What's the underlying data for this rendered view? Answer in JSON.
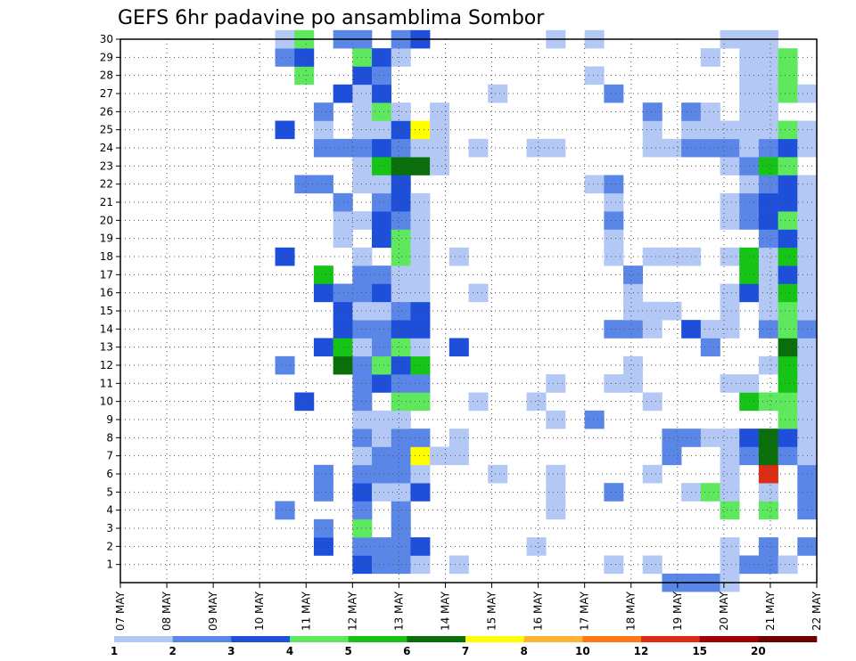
{
  "chart_data": {
    "type": "heatmap",
    "title": "GEFS 6hr padavine po ansamblima Sombor",
    "x_start": "2018-05-07",
    "x_labels": [
      "07 MAY",
      "08 MAY",
      "09 MAY",
      "10 MAY",
      "11 MAY",
      "12 MAY",
      "13 MAY",
      "14 MAY",
      "15 MAY",
      "16 MAY",
      "17 MAY",
      "18 MAY",
      "19 MAY",
      "20 MAY",
      "21 MAY",
      "22 MAY"
    ],
    "y_ticks": [
      1,
      2,
      3,
      4,
      5,
      6,
      7,
      8,
      9,
      10,
      11,
      12,
      13,
      14,
      15,
      16,
      17,
      18,
      19,
      20,
      21,
      22,
      23,
      24,
      25,
      26,
      27,
      28,
      29,
      30
    ],
    "grid": true,
    "legend": {
      "placement": "bottom",
      "labels": [
        "1",
        "2",
        "3",
        "4",
        "5",
        "6",
        "7",
        "8",
        "10",
        "12",
        "15",
        "20"
      ],
      "colors": [
        "#b4c8f5",
        "#5a86e8",
        "#1e4fdb",
        "#5ee85e",
        "#16c416",
        "#0a6e0a",
        "#ffff00",
        "#ffb432",
        "#ff7814",
        "#dc2c14",
        "#a00000",
        "#6e0000"
      ]
    },
    "cells": [
      [
        8,
        4,
        3
      ],
      [
        8,
        4,
        2
      ],
      [
        8,
        12,
        2
      ],
      [
        8,
        18,
        3
      ],
      [
        8,
        25,
        3
      ],
      [
        8,
        29,
        2
      ],
      [
        8,
        30,
        1
      ],
      [
        9,
        10,
        3
      ],
      [
        9,
        22,
        2
      ],
      [
        9,
        28,
        4
      ],
      [
        9,
        29,
        3
      ],
      [
        9,
        30,
        4
      ],
      [
        10,
        2,
        3
      ],
      [
        10,
        3,
        2
      ],
      [
        10,
        5,
        2
      ],
      [
        10,
        6,
        2
      ],
      [
        10,
        13,
        3
      ],
      [
        10,
        16,
        3
      ],
      [
        10,
        17,
        5
      ],
      [
        10,
        22,
        2
      ],
      [
        10,
        24,
        2
      ],
      [
        10,
        25,
        1
      ],
      [
        10,
        26,
        2
      ],
      [
        11,
        12,
        6
      ],
      [
        11,
        13,
        5
      ],
      [
        11,
        14,
        3
      ],
      [
        11,
        15,
        3
      ],
      [
        11,
        16,
        2
      ],
      [
        11,
        19,
        1
      ],
      [
        11,
        20,
        1
      ],
      [
        11,
        21,
        2
      ],
      [
        11,
        24,
        2
      ],
      [
        11,
        27,
        3
      ],
      [
        11,
        30,
        2
      ],
      [
        12,
        1,
        3
      ],
      [
        12,
        2,
        2
      ],
      [
        12,
        3,
        4
      ],
      [
        12,
        4,
        2
      ],
      [
        12,
        5,
        3
      ],
      [
        12,
        6,
        2
      ],
      [
        12,
        7,
        1
      ],
      [
        12,
        8,
        2
      ],
      [
        12,
        9,
        1
      ],
      [
        12,
        10,
        2
      ],
      [
        12,
        11,
        2
      ],
      [
        12,
        12,
        2
      ],
      [
        12,
        13,
        1
      ],
      [
        12,
        14,
        2
      ],
      [
        12,
        15,
        1
      ],
      [
        12,
        16,
        2
      ],
      [
        12,
        17,
        2
      ],
      [
        12,
        18,
        1
      ],
      [
        12,
        20,
        1
      ],
      [
        12,
        22,
        1
      ],
      [
        12,
        23,
        1
      ],
      [
        12,
        24,
        2
      ],
      [
        12,
        25,
        1
      ],
      [
        12,
        26,
        1
      ],
      [
        12,
        27,
        1
      ],
      [
        12,
        28,
        3
      ],
      [
        12,
        29,
        4
      ],
      [
        12,
        30,
        2
      ],
      [
        13,
        1,
        2
      ],
      [
        13,
        2,
        2
      ],
      [
        13,
        5,
        1
      ],
      [
        13,
        6,
        2
      ],
      [
        13,
        7,
        2
      ],
      [
        13,
        8,
        1
      ],
      [
        13,
        9,
        1
      ],
      [
        13,
        11,
        3
      ],
      [
        13,
        12,
        4
      ],
      [
        13,
        13,
        2
      ],
      [
        13,
        14,
        2
      ],
      [
        13,
        15,
        1
      ],
      [
        13,
        16,
        3
      ],
      [
        13,
        17,
        2
      ],
      [
        13,
        19,
        3
      ],
      [
        13,
        20,
        3
      ],
      [
        13,
        21,
        2
      ],
      [
        13,
        22,
        1
      ],
      [
        13,
        23,
        5
      ],
      [
        13,
        24,
        3
      ],
      [
        13,
        25,
        1
      ],
      [
        13,
        26,
        4
      ],
      [
        13,
        27,
        3
      ],
      [
        13,
        28,
        2
      ],
      [
        13,
        29,
        3
      ],
      [
        14,
        1,
        2
      ],
      [
        14,
        2,
        2
      ],
      [
        14,
        3,
        2
      ],
      [
        14,
        4,
        2
      ],
      [
        14,
        5,
        1
      ],
      [
        14,
        6,
        2
      ],
      [
        14,
        7,
        2
      ],
      [
        14,
        8,
        2
      ],
      [
        14,
        9,
        1
      ],
      [
        14,
        10,
        4
      ],
      [
        14,
        11,
        2
      ],
      [
        14,
        12,
        3
      ],
      [
        14,
        13,
        4
      ],
      [
        14,
        14,
        3
      ],
      [
        14,
        15,
        2
      ],
      [
        14,
        16,
        1
      ],
      [
        14,
        17,
        1
      ],
      [
        14,
        18,
        4
      ],
      [
        14,
        19,
        4
      ],
      [
        14,
        20,
        2
      ],
      [
        14,
        21,
        3
      ],
      [
        14,
        22,
        3
      ],
      [
        14,
        23,
        6
      ],
      [
        14,
        24,
        2
      ],
      [
        14,
        25,
        3
      ],
      [
        14,
        26,
        1
      ],
      [
        14,
        29,
        1
      ],
      [
        14,
        30,
        2
      ],
      [
        15,
        1,
        1
      ],
      [
        15,
        2,
        3
      ],
      [
        15,
        5,
        3
      ],
      [
        15,
        6,
        1
      ],
      [
        15,
        7,
        7
      ],
      [
        15,
        8,
        2
      ],
      [
        15,
        10,
        4
      ],
      [
        15,
        11,
        2
      ],
      [
        15,
        12,
        5
      ],
      [
        15,
        13,
        1
      ],
      [
        15,
        14,
        3
      ],
      [
        15,
        15,
        3
      ],
      [
        15,
        16,
        1
      ],
      [
        15,
        17,
        1
      ],
      [
        15,
        18,
        1
      ],
      [
        15,
        19,
        1
      ],
      [
        15,
        20,
        1
      ],
      [
        15,
        21,
        1
      ],
      [
        15,
        23,
        6
      ],
      [
        15,
        24,
        1
      ],
      [
        15,
        25,
        7
      ],
      [
        15,
        30,
        3
      ],
      [
        16,
        7,
        1
      ],
      [
        16,
        23,
        1
      ],
      [
        16,
        24,
        1
      ],
      [
        16,
        25,
        1
      ],
      [
        16,
        26,
        1
      ],
      [
        17,
        1,
        1
      ],
      [
        17,
        7,
        1
      ],
      [
        17,
        8,
        1
      ],
      [
        17,
        13,
        3
      ],
      [
        17,
        18,
        1
      ],
      [
        18,
        10,
        1
      ],
      [
        18,
        16,
        1
      ],
      [
        18,
        24,
        1
      ],
      [
        19,
        6,
        1
      ],
      [
        19,
        27,
        1
      ],
      [
        21,
        2,
        1
      ],
      [
        21,
        10,
        1
      ],
      [
        21,
        24,
        1
      ],
      [
        22,
        4,
        1
      ],
      [
        22,
        5,
        1
      ],
      [
        22,
        6,
        1
      ],
      [
        22,
        9,
        1
      ],
      [
        22,
        11,
        1
      ],
      [
        22,
        24,
        1
      ],
      [
        22,
        30,
        1
      ],
      [
        24,
        9,
        2
      ],
      [
        24,
        22,
        1
      ],
      [
        24,
        28,
        1
      ],
      [
        24,
        30,
        1
      ],
      [
        25,
        1,
        1
      ],
      [
        25,
        5,
        2
      ],
      [
        25,
        11,
        1
      ],
      [
        25,
        14,
        2
      ],
      [
        25,
        18,
        1
      ],
      [
        25,
        19,
        1
      ],
      [
        25,
        20,
        2
      ],
      [
        25,
        21,
        1
      ],
      [
        25,
        22,
        2
      ],
      [
        25,
        27,
        2
      ],
      [
        26,
        11,
        1
      ],
      [
        26,
        12,
        1
      ],
      [
        26,
        14,
        2
      ],
      [
        26,
        15,
        1
      ],
      [
        26,
        16,
        1
      ],
      [
        26,
        17,
        2
      ],
      [
        27,
        1,
        1
      ],
      [
        27,
        6,
        1
      ],
      [
        27,
        10,
        1
      ],
      [
        27,
        14,
        1
      ],
      [
        27,
        15,
        1
      ],
      [
        27,
        18,
        1
      ],
      [
        27,
        24,
        1
      ],
      [
        27,
        25,
        1
      ],
      [
        27,
        26,
        2
      ],
      [
        28,
        0,
        2
      ],
      [
        28,
        7,
        2
      ],
      [
        28,
        8,
        2
      ],
      [
        28,
        15,
        1
      ],
      [
        28,
        18,
        1
      ],
      [
        28,
        24,
        1
      ],
      [
        29,
        0,
        2
      ],
      [
        29,
        5,
        1
      ],
      [
        29,
        8,
        2
      ],
      [
        29,
        14,
        3
      ],
      [
        29,
        18,
        1
      ],
      [
        29,
        24,
        2
      ],
      [
        29,
        25,
        1
      ],
      [
        29,
        26,
        2
      ],
      [
        30,
        0,
        2
      ],
      [
        30,
        5,
        4
      ],
      [
        30,
        8,
        1
      ],
      [
        30,
        13,
        2
      ],
      [
        30,
        14,
        1
      ],
      [
        30,
        24,
        2
      ],
      [
        30,
        25,
        1
      ],
      [
        30,
        26,
        1
      ],
      [
        30,
        29,
        1
      ],
      [
        31,
        0,
        1
      ],
      [
        31,
        1,
        1
      ],
      [
        31,
        2,
        1
      ],
      [
        31,
        4,
        4
      ],
      [
        31,
        5,
        1
      ],
      [
        31,
        6,
        1
      ],
      [
        31,
        7,
        1
      ],
      [
        31,
        8,
        1
      ],
      [
        31,
        11,
        1
      ],
      [
        31,
        14,
        1
      ],
      [
        31,
        15,
        1
      ],
      [
        31,
        16,
        1
      ],
      [
        31,
        18,
        1
      ],
      [
        31,
        20,
        1
      ],
      [
        31,
        21,
        1
      ],
      [
        31,
        23,
        1
      ],
      [
        31,
        24,
        2
      ],
      [
        31,
        25,
        1
      ],
      [
        31,
        30,
        1
      ],
      [
        32,
        1,
        2
      ],
      [
        32,
        7,
        2
      ],
      [
        32,
        8,
        3
      ],
      [
        32,
        10,
        5
      ],
      [
        32,
        11,
        1
      ],
      [
        32,
        16,
        3
      ],
      [
        32,
        17,
        5
      ],
      [
        32,
        18,
        5
      ],
      [
        32,
        20,
        2
      ],
      [
        32,
        21,
        2
      ],
      [
        32,
        22,
        1
      ],
      [
        32,
        23,
        2
      ],
      [
        32,
        24,
        1
      ],
      [
        32,
        25,
        1
      ],
      [
        32,
        26,
        1
      ],
      [
        32,
        27,
        1
      ],
      [
        32,
        28,
        1
      ],
      [
        32,
        29,
        1
      ],
      [
        32,
        30,
        1
      ],
      [
        33,
        1,
        2
      ],
      [
        33,
        2,
        2
      ],
      [
        33,
        4,
        4
      ],
      [
        33,
        5,
        1
      ],
      [
        33,
        6,
        10
      ],
      [
        33,
        7,
        6
      ],
      [
        33,
        8,
        6
      ],
      [
        33,
        10,
        4
      ],
      [
        33,
        12,
        1
      ],
      [
        33,
        14,
        2
      ],
      [
        33,
        15,
        1
      ],
      [
        33,
        16,
        1
      ],
      [
        33,
        17,
        1
      ],
      [
        33,
        18,
        1
      ],
      [
        33,
        19,
        2
      ],
      [
        33,
        20,
        3
      ],
      [
        33,
        21,
        3
      ],
      [
        33,
        22,
        2
      ],
      [
        33,
        23,
        5
      ],
      [
        33,
        24,
        2
      ],
      [
        33,
        25,
        1
      ],
      [
        33,
        26,
        1
      ],
      [
        33,
        27,
        1
      ],
      [
        33,
        28,
        1
      ],
      [
        33,
        29,
        1
      ],
      [
        33,
        30,
        1
      ],
      [
        34,
        1,
        1
      ],
      [
        34,
        7,
        2
      ],
      [
        34,
        8,
        3
      ],
      [
        34,
        9,
        4
      ],
      [
        34,
        10,
        4
      ],
      [
        34,
        11,
        5
      ],
      [
        34,
        12,
        5
      ],
      [
        34,
        13,
        6
      ],
      [
        34,
        14,
        4
      ],
      [
        34,
        15,
        4
      ],
      [
        34,
        16,
        5
      ],
      [
        34,
        17,
        3
      ],
      [
        34,
        18,
        5
      ],
      [
        34,
        19,
        3
      ],
      [
        34,
        20,
        4
      ],
      [
        34,
        21,
        3
      ],
      [
        34,
        22,
        3
      ],
      [
        34,
        23,
        4
      ],
      [
        34,
        24,
        3
      ],
      [
        34,
        25,
        4
      ],
      [
        34,
        27,
        4
      ],
      [
        34,
        28,
        4
      ],
      [
        34,
        29,
        4
      ],
      [
        35,
        2,
        2
      ],
      [
        35,
        4,
        2
      ],
      [
        35,
        5,
        2
      ],
      [
        35,
        6,
        2
      ],
      [
        35,
        7,
        1
      ],
      [
        35,
        8,
        1
      ],
      [
        35,
        9,
        1
      ],
      [
        35,
        10,
        1
      ],
      [
        35,
        11,
        1
      ],
      [
        35,
        12,
        1
      ],
      [
        35,
        13,
        1
      ],
      [
        35,
        14,
        2
      ],
      [
        35,
        15,
        1
      ],
      [
        35,
        16,
        1
      ],
      [
        35,
        17,
        1
      ],
      [
        35,
        18,
        1
      ],
      [
        35,
        19,
        1
      ],
      [
        35,
        20,
        1
      ],
      [
        35,
        21,
        1
      ],
      [
        35,
        22,
        1
      ],
      [
        35,
        24,
        1
      ],
      [
        35,
        25,
        1
      ],
      [
        35,
        27,
        1
      ]
    ]
  }
}
